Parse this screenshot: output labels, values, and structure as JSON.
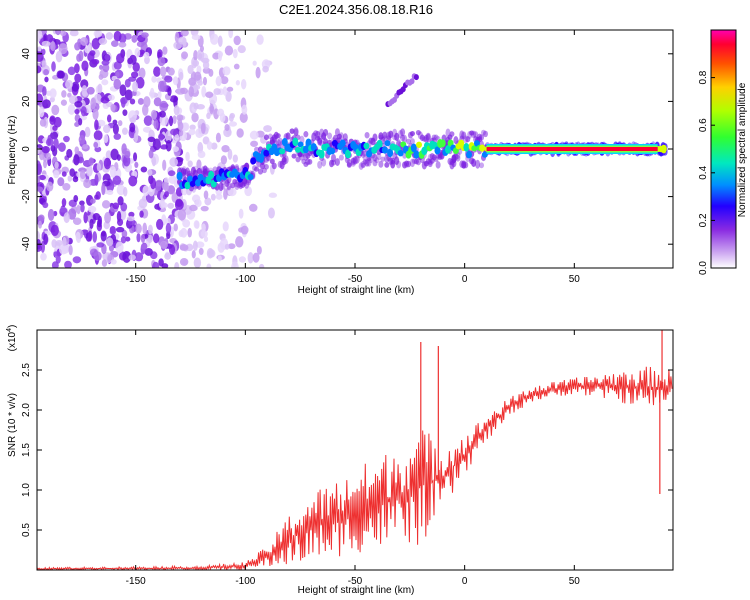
{
  "title": "C2E1.2024.356.08.18.R16",
  "chart_data": [
    {
      "type": "heatmap",
      "title": "C2E1.2024.356.08.18.R16",
      "xlabel": "Height of straight line (km)",
      "ylabel": "Frequency (Hz)",
      "xlim": [
        -195,
        95
      ],
      "ylim": [
        -50,
        50
      ],
      "xticks": [
        -150,
        -100,
        -50,
        0,
        50
      ],
      "yticks": [
        -40,
        -20,
        0,
        20,
        40
      ],
      "colorbar": {
        "label": "Normalized spectral amplitude",
        "range": [
          0.0,
          1.0
        ],
        "ticks": [
          0.0,
          0.2,
          0.4,
          0.6,
          0.8
        ],
        "colors": [
          "#ffffff",
          "#a855f7",
          "#6600ff",
          "#0000ff",
          "#00bfff",
          "#00ff80",
          "#80ff00",
          "#ffd000",
          "#ff6000",
          "#ff0000",
          "#ff00a0"
        ]
      },
      "ridge": [
        {
          "x": -125,
          "freq": -13
        },
        {
          "x": -110,
          "freq": -12
        },
        {
          "x": -98,
          "freq": -11
        },
        {
          "x": -95,
          "freq": -3
        },
        {
          "x": -80,
          "freq": 1
        },
        {
          "x": -60,
          "freq": 0
        },
        {
          "x": -40,
          "freq": 0
        },
        {
          "x": -20,
          "freq": 0
        },
        {
          "x": 0,
          "freq": 0
        },
        {
          "x": 10,
          "freq": 0
        },
        {
          "x": 50,
          "freq": 0
        },
        {
          "x": 88,
          "freq": 0
        },
        {
          "x": 95,
          "freq": 0
        }
      ],
      "branch": [
        {
          "x": -35,
          "freq": 18
        },
        {
          "x": -22,
          "freq": 31
        }
      ]
    },
    {
      "type": "line",
      "xlabel": "Height of straight line (km)",
      "ylabel": "SNR (10 * v/v)",
      "y_multiplier": "(x10",
      "y_multiplier_exp": "4",
      "y_multiplier_close": ")",
      "xlim": [
        -195,
        95
      ],
      "ylim": [
        0,
        3.0
      ],
      "xticks": [
        -150,
        -100,
        -50,
        0,
        50
      ],
      "yticks": [
        0.5,
        1.0,
        1.5,
        2.0,
        2.5
      ],
      "line_color": "#ee3030",
      "envelope": [
        {
          "x": -195,
          "lo": 0.0,
          "hi": 0.03
        },
        {
          "x": -120,
          "lo": 0.0,
          "hi": 0.05
        },
        {
          "x": -100,
          "lo": 0.0,
          "hi": 0.1
        },
        {
          "x": -90,
          "lo": 0.03,
          "hi": 0.3
        },
        {
          "x": -80,
          "lo": 0.05,
          "hi": 0.7
        },
        {
          "x": -70,
          "lo": 0.1,
          "hi": 1.0
        },
        {
          "x": -60,
          "lo": 0.15,
          "hi": 1.1
        },
        {
          "x": -50,
          "lo": 0.2,
          "hi": 1.3
        },
        {
          "x": -40,
          "lo": 0.25,
          "hi": 1.4
        },
        {
          "x": -30,
          "lo": 0.3,
          "hi": 1.6
        },
        {
          "x": -20,
          "lo": 0.3,
          "hi": 1.8
        },
        {
          "x": -10,
          "lo": 0.7,
          "hi": 1.6
        },
        {
          "x": 0,
          "lo": 1.2,
          "hi": 1.7
        },
        {
          "x": 10,
          "lo": 1.6,
          "hi": 1.95
        },
        {
          "x": 20,
          "lo": 1.9,
          "hi": 2.15
        },
        {
          "x": 30,
          "lo": 2.1,
          "hi": 2.3
        },
        {
          "x": 50,
          "lo": 2.2,
          "hi": 2.4
        },
        {
          "x": 70,
          "lo": 2.1,
          "hi": 2.5
        },
        {
          "x": 85,
          "lo": 2.0,
          "hi": 2.55
        },
        {
          "x": 95,
          "lo": 2.1,
          "hi": 2.5
        }
      ],
      "spikes": [
        {
          "x": -20,
          "y": 2.85
        },
        {
          "x": -12,
          "y": 2.8
        },
        {
          "x": 90,
          "y": 3.0
        },
        {
          "x": 89,
          "y": 0.95
        }
      ]
    }
  ]
}
